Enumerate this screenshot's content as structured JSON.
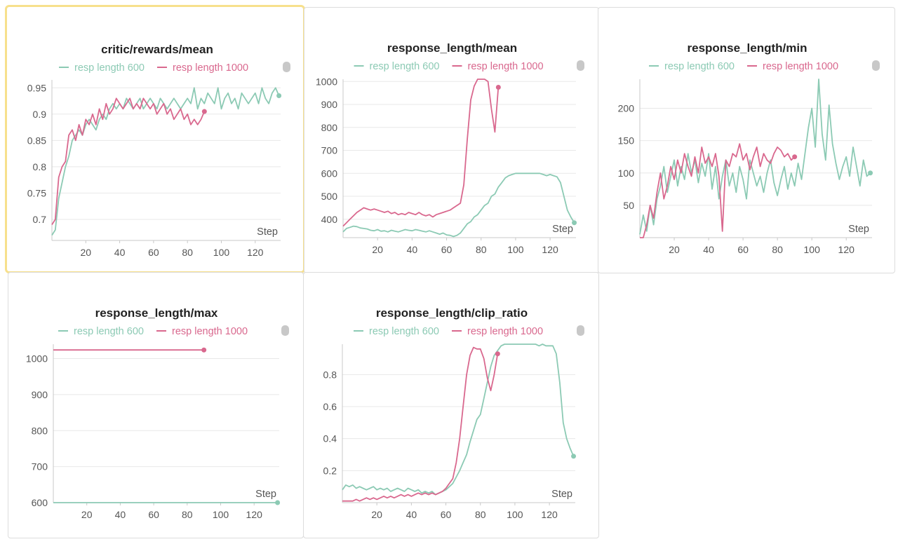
{
  "colors": {
    "green": "#8ccab4",
    "pink": "#d9688e"
  },
  "legend": {
    "series_a": "resp length 600",
    "series_b": "resp length 1000"
  },
  "menu_icon": "toggle-icon",
  "chart_data": [
    {
      "id": "rewards",
      "type": "line",
      "title": "critic/rewards/mean",
      "xlabel": "Step",
      "xticks": [
        20,
        40,
        60,
        80,
        100,
        120
      ],
      "yticks": [
        0.7,
        0.75,
        0.8,
        0.85,
        0.9,
        0.95
      ],
      "ytick_labels": [
        "0.7",
        "0.75",
        "0.8",
        "0.85",
        "0.9",
        "0.95"
      ],
      "xlim": [
        0,
        135
      ],
      "ylim": [
        0.66,
        0.965
      ],
      "grid": true,
      "series": [
        {
          "name": "resp length 600",
          "color": "#8ccab4",
          "x": [
            0,
            2,
            4,
            6,
            8,
            10,
            12,
            14,
            16,
            18,
            20,
            22,
            24,
            26,
            28,
            30,
            32,
            34,
            36,
            38,
            40,
            42,
            44,
            46,
            48,
            50,
            52,
            54,
            56,
            58,
            60,
            62,
            64,
            66,
            68,
            70,
            72,
            74,
            76,
            78,
            80,
            82,
            84,
            86,
            88,
            90,
            92,
            94,
            96,
            98,
            100,
            102,
            104,
            106,
            108,
            110,
            112,
            114,
            116,
            118,
            120,
            122,
            124,
            126,
            128,
            130,
            132,
            134
          ],
          "y": [
            0.67,
            0.68,
            0.74,
            0.77,
            0.8,
            0.82,
            0.85,
            0.86,
            0.87,
            0.86,
            0.88,
            0.89,
            0.88,
            0.87,
            0.89,
            0.9,
            0.89,
            0.91,
            0.92,
            0.91,
            0.92,
            0.91,
            0.93,
            0.92,
            0.91,
            0.92,
            0.93,
            0.91,
            0.92,
            0.93,
            0.92,
            0.91,
            0.93,
            0.92,
            0.91,
            0.92,
            0.93,
            0.92,
            0.91,
            0.92,
            0.93,
            0.92,
            0.95,
            0.91,
            0.93,
            0.92,
            0.94,
            0.93,
            0.92,
            0.95,
            0.91,
            0.93,
            0.94,
            0.92,
            0.93,
            0.91,
            0.94,
            0.93,
            0.92,
            0.93,
            0.94,
            0.92,
            0.95,
            0.93,
            0.92,
            0.94,
            0.95,
            0.935
          ]
        },
        {
          "name": "resp length 1000",
          "color": "#d9688e",
          "x": [
            0,
            2,
            4,
            6,
            8,
            10,
            12,
            14,
            16,
            18,
            20,
            22,
            24,
            26,
            28,
            30,
            32,
            34,
            36,
            38,
            40,
            42,
            44,
            46,
            48,
            50,
            52,
            54,
            56,
            58,
            60,
            62,
            64,
            66,
            68,
            70,
            72,
            74,
            76,
            78,
            80,
            82,
            84,
            86,
            88,
            90
          ],
          "y": [
            0.69,
            0.7,
            0.78,
            0.8,
            0.81,
            0.86,
            0.87,
            0.85,
            0.88,
            0.86,
            0.89,
            0.88,
            0.9,
            0.88,
            0.91,
            0.89,
            0.92,
            0.9,
            0.91,
            0.93,
            0.92,
            0.91,
            0.92,
            0.93,
            0.91,
            0.92,
            0.91,
            0.93,
            0.92,
            0.91,
            0.92,
            0.9,
            0.91,
            0.92,
            0.9,
            0.91,
            0.89,
            0.9,
            0.91,
            0.89,
            0.9,
            0.88,
            0.89,
            0.88,
            0.89,
            0.905
          ]
        }
      ]
    },
    {
      "id": "len_mean",
      "type": "line",
      "title": "response_length/mean",
      "xlabel": "Step",
      "xticks": [
        20,
        40,
        60,
        80,
        100,
        120
      ],
      "yticks": [
        400,
        500,
        600,
        700,
        800,
        900,
        1000
      ],
      "ytick_labels": [
        "400",
        "500",
        "600",
        "700",
        "800",
        "900",
        "1000"
      ],
      "xlim": [
        0,
        135
      ],
      "ylim": [
        320,
        1010
      ],
      "grid": true,
      "series": [
        {
          "name": "resp length 600",
          "color": "#8ccab4",
          "x": [
            0,
            2,
            4,
            6,
            8,
            10,
            12,
            14,
            16,
            18,
            20,
            22,
            24,
            26,
            28,
            30,
            32,
            34,
            36,
            38,
            40,
            42,
            44,
            46,
            48,
            50,
            52,
            54,
            56,
            58,
            60,
            62,
            64,
            66,
            68,
            70,
            72,
            74,
            76,
            78,
            80,
            82,
            84,
            86,
            88,
            90,
            92,
            94,
            96,
            98,
            100,
            102,
            104,
            106,
            108,
            110,
            112,
            114,
            116,
            118,
            120,
            122,
            124,
            126,
            128,
            130,
            132,
            134
          ],
          "y": [
            345,
            360,
            365,
            370,
            368,
            362,
            360,
            358,
            352,
            350,
            355,
            348,
            350,
            345,
            352,
            348,
            345,
            350,
            355,
            352,
            350,
            355,
            352,
            348,
            345,
            350,
            345,
            340,
            335,
            340,
            332,
            330,
            325,
            330,
            340,
            360,
            380,
            390,
            410,
            420,
            440,
            460,
            470,
            500,
            510,
            540,
            560,
            580,
            590,
            595,
            600,
            600,
            600,
            600,
            600,
            600,
            600,
            600,
            595,
            590,
            595,
            590,
            585,
            560,
            500,
            440,
            410,
            385
          ]
        },
        {
          "name": "resp length 1000",
          "color": "#d9688e",
          "x": [
            0,
            2,
            4,
            6,
            8,
            10,
            12,
            14,
            16,
            18,
            20,
            22,
            24,
            26,
            28,
            30,
            32,
            34,
            36,
            38,
            40,
            42,
            44,
            46,
            48,
            50,
            52,
            54,
            56,
            58,
            60,
            62,
            64,
            66,
            68,
            70,
            72,
            74,
            76,
            78,
            80,
            82,
            84,
            86,
            88,
            90
          ],
          "y": [
            370,
            385,
            400,
            415,
            430,
            440,
            450,
            445,
            440,
            445,
            440,
            435,
            430,
            435,
            425,
            430,
            420,
            425,
            420,
            430,
            425,
            420,
            430,
            420,
            415,
            420,
            410,
            420,
            425,
            430,
            435,
            440,
            450,
            460,
            470,
            550,
            750,
            920,
            980,
            1010,
            1010,
            1010,
            1000,
            880,
            780,
            975
          ]
        }
      ]
    },
    {
      "id": "len_min",
      "type": "line",
      "title": "response_length/min",
      "xlabel": "Step",
      "xticks": [
        20,
        40,
        60,
        80,
        100,
        120
      ],
      "yticks": [
        50,
        100,
        150,
        200
      ],
      "ytick_labels": [
        "50",
        "100",
        "150",
        "200"
      ],
      "xlim": [
        0,
        135
      ],
      "ylim": [
        0,
        245
      ],
      "grid": true,
      "series": [
        {
          "name": "resp length 600",
          "color": "#8ccab4",
          "x": [
            0,
            2,
            4,
            6,
            8,
            10,
            12,
            14,
            16,
            18,
            20,
            22,
            24,
            26,
            28,
            30,
            32,
            34,
            36,
            38,
            40,
            42,
            44,
            46,
            48,
            50,
            52,
            54,
            56,
            58,
            60,
            62,
            64,
            66,
            68,
            70,
            72,
            74,
            76,
            78,
            80,
            82,
            84,
            86,
            88,
            90,
            92,
            94,
            96,
            98,
            100,
            102,
            104,
            106,
            108,
            110,
            112,
            114,
            116,
            118,
            120,
            122,
            124,
            126,
            128,
            130,
            132,
            134
          ],
          "y": [
            5,
            35,
            10,
            50,
            20,
            60,
            80,
            110,
            70,
            95,
            120,
            80,
            110,
            90,
            130,
            100,
            120,
            85,
            115,
            95,
            130,
            75,
            110,
            60,
            95,
            120,
            80,
            100,
            70,
            110,
            90,
            60,
            120,
            100,
            80,
            95,
            70,
            100,
            120,
            85,
            65,
            90,
            110,
            75,
            100,
            80,
            115,
            90,
            130,
            170,
            200,
            140,
            245,
            160,
            120,
            205,
            145,
            115,
            90,
            110,
            125,
            95,
            140,
            110,
            80,
            120,
            95,
            100
          ]
        },
        {
          "name": "resp length 1000",
          "color": "#d9688e",
          "x": [
            0,
            2,
            4,
            6,
            8,
            10,
            12,
            14,
            16,
            18,
            20,
            22,
            24,
            26,
            28,
            30,
            32,
            34,
            36,
            38,
            40,
            42,
            44,
            46,
            48,
            50,
            52,
            54,
            56,
            58,
            60,
            62,
            64,
            66,
            68,
            70,
            72,
            74,
            76,
            78,
            80,
            82,
            84,
            86,
            88,
            90
          ],
          "y": [
            0,
            0,
            20,
            50,
            30,
            70,
            100,
            60,
            80,
            110,
            90,
            120,
            100,
            130,
            110,
            95,
            125,
            100,
            140,
            115,
            125,
            110,
            130,
            95,
            10,
            120,
            110,
            130,
            125,
            145,
            120,
            130,
            105,
            125,
            140,
            110,
            130,
            120,
            115,
            130,
            140,
            135,
            125,
            130,
            120,
            125
          ]
        }
      ]
    },
    {
      "id": "len_max",
      "type": "line",
      "title": "response_length/max",
      "xlabel": "Step",
      "xticks": [
        20,
        40,
        60,
        80,
        100,
        120
      ],
      "yticks": [
        600,
        700,
        800,
        900,
        1000
      ],
      "ytick_labels": [
        "600",
        "700",
        "800",
        "900",
        "1000"
      ],
      "xlim": [
        0,
        135
      ],
      "ylim": [
        600,
        1040
      ],
      "grid": true,
      "series": [
        {
          "name": "resp length 600",
          "color": "#8ccab4",
          "x": [
            0,
            134
          ],
          "y": [
            600,
            600
          ]
        },
        {
          "name": "resp length 1000",
          "color": "#d9688e",
          "x": [
            0,
            90
          ],
          "y": [
            1024,
            1024
          ]
        }
      ]
    },
    {
      "id": "clip_ratio",
      "type": "line",
      "title": "response_length/clip_ratio",
      "xlabel": "Step",
      "xticks": [
        20,
        40,
        60,
        80,
        100,
        120
      ],
      "yticks": [
        0.2,
        0.4,
        0.6,
        0.8
      ],
      "ytick_labels": [
        "0.2",
        "0.4",
        "0.6",
        "0.8"
      ],
      "xlim": [
        0,
        135
      ],
      "ylim": [
        0,
        0.99
      ],
      "grid": true,
      "series": [
        {
          "name": "resp length 600",
          "color": "#8ccab4",
          "x": [
            0,
            2,
            4,
            6,
            8,
            10,
            12,
            14,
            16,
            18,
            20,
            22,
            24,
            26,
            28,
            30,
            32,
            34,
            36,
            38,
            40,
            42,
            44,
            46,
            48,
            50,
            52,
            54,
            56,
            58,
            60,
            62,
            64,
            66,
            68,
            70,
            72,
            74,
            76,
            78,
            80,
            82,
            84,
            86,
            88,
            90,
            92,
            94,
            96,
            98,
            100,
            102,
            104,
            106,
            108,
            110,
            112,
            114,
            116,
            118,
            120,
            122,
            124,
            126,
            128,
            130,
            132,
            134
          ],
          "y": [
            0.08,
            0.11,
            0.1,
            0.11,
            0.09,
            0.1,
            0.09,
            0.08,
            0.09,
            0.1,
            0.08,
            0.09,
            0.08,
            0.09,
            0.07,
            0.08,
            0.09,
            0.08,
            0.07,
            0.09,
            0.08,
            0.07,
            0.08,
            0.06,
            0.07,
            0.06,
            0.07,
            0.05,
            0.06,
            0.07,
            0.08,
            0.1,
            0.12,
            0.16,
            0.2,
            0.25,
            0.3,
            0.38,
            0.45,
            0.52,
            0.55,
            0.65,
            0.75,
            0.85,
            0.92,
            0.95,
            0.98,
            0.99,
            0.99,
            0.99,
            0.99,
            0.99,
            0.99,
            0.99,
            0.99,
            0.99,
            0.99,
            0.98,
            0.99,
            0.98,
            0.98,
            0.98,
            0.93,
            0.75,
            0.5,
            0.4,
            0.34,
            0.29
          ]
        },
        {
          "name": "resp length 1000",
          "color": "#d9688e",
          "x": [
            0,
            2,
            4,
            6,
            8,
            10,
            12,
            14,
            16,
            18,
            20,
            22,
            24,
            26,
            28,
            30,
            32,
            34,
            36,
            38,
            40,
            42,
            44,
            46,
            48,
            50,
            52,
            54,
            56,
            58,
            60,
            62,
            64,
            66,
            68,
            70,
            72,
            74,
            76,
            78,
            80,
            82,
            84,
            86,
            88,
            90
          ],
          "y": [
            0.01,
            0.01,
            0.01,
            0.01,
            0.02,
            0.01,
            0.02,
            0.03,
            0.02,
            0.03,
            0.02,
            0.03,
            0.04,
            0.03,
            0.04,
            0.03,
            0.04,
            0.05,
            0.04,
            0.05,
            0.04,
            0.05,
            0.06,
            0.05,
            0.06,
            0.05,
            0.06,
            0.05,
            0.06,
            0.07,
            0.09,
            0.12,
            0.15,
            0.25,
            0.4,
            0.6,
            0.8,
            0.92,
            0.97,
            0.96,
            0.96,
            0.9,
            0.78,
            0.7,
            0.8,
            0.93
          ]
        }
      ]
    }
  ]
}
